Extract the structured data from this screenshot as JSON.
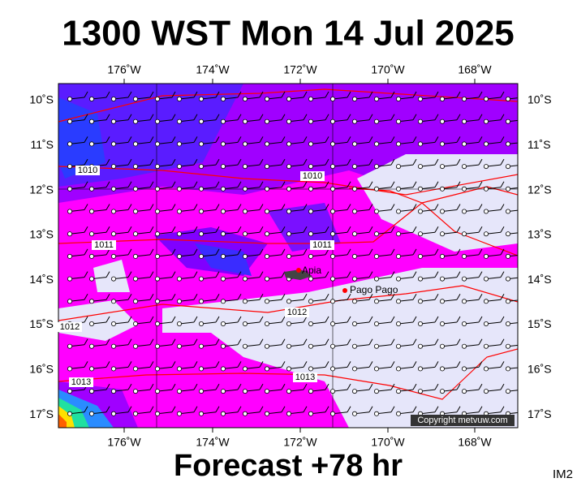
{
  "header": {
    "title": "1300 WST Mon 14 Jul 2025"
  },
  "map": {
    "lon_labels": [
      "176˚W",
      "174˚W",
      "172˚W",
      "170˚W",
      "168˚W"
    ],
    "lat_labels": [
      "10˚S",
      "11˚S",
      "12˚S",
      "13˚S",
      "14˚S",
      "15˚S",
      "16˚S",
      "17˚S"
    ],
    "isobar_labels": [
      "1010",
      "1010",
      "1011",
      "1011",
      "1012",
      "1012",
      "1013",
      "1013"
    ],
    "places": [
      "Apia",
      "Pago Pago"
    ],
    "copyright": "Copyright metvuw.com"
  },
  "footer": {
    "forecast": "Forecast +78 hr",
    "image_id": "IM2"
  }
}
